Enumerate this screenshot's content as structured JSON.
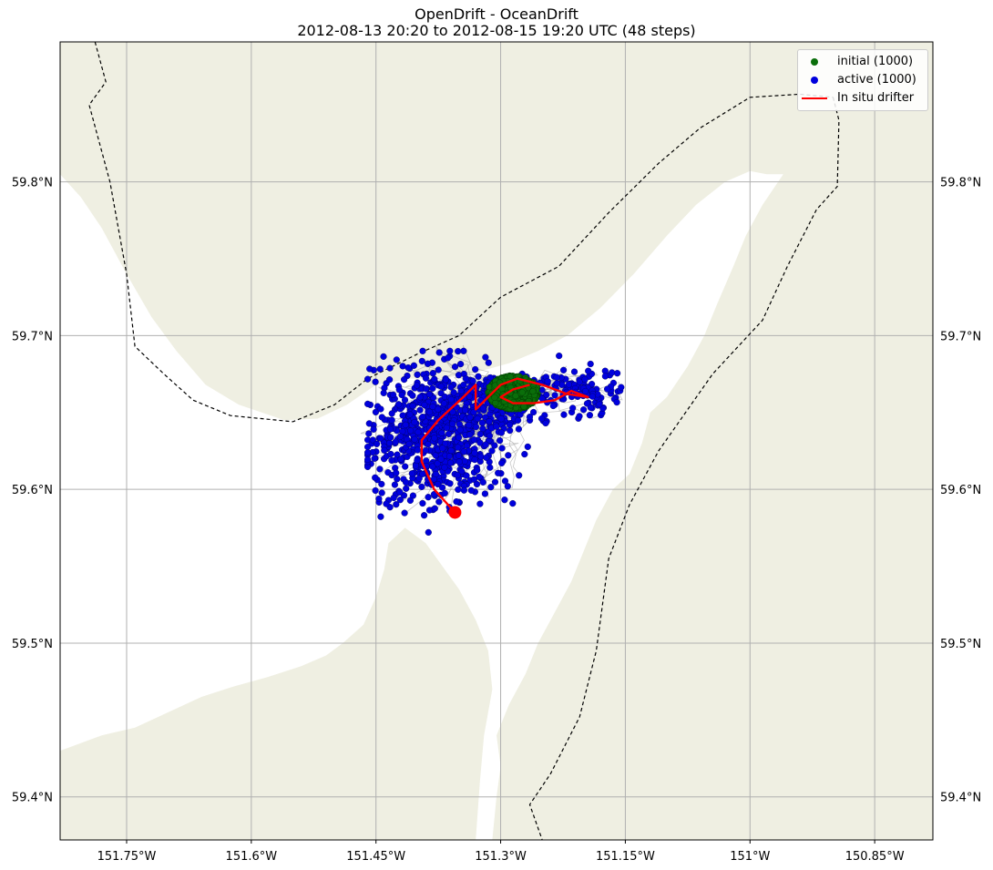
{
  "figure": {
    "title_line1": "OpenDrift - OceanDrift",
    "title_line2": "2012-08-13 20:20 to 2012-08-15 19:20 UTC (48 steps)"
  },
  "map": {
    "lon_range": [
      -151.83,
      -150.78
    ],
    "lat_range": [
      59.372,
      59.891
    ],
    "colors": {
      "land": "#efefe2",
      "ocean": "#ffffff",
      "gridline": "#b0b0b0",
      "trajectory": "#9b9b9b",
      "boundary": "#000000"
    },
    "x_ticks": [
      {
        "value": -151.75,
        "label": "151.75°W"
      },
      {
        "value": -151.6,
        "label": "151.6°W"
      },
      {
        "value": -151.45,
        "label": "151.45°W"
      },
      {
        "value": -151.3,
        "label": "151.3°W"
      },
      {
        "value": -151.15,
        "label": "151.15°W"
      },
      {
        "value": -151.0,
        "label": "151°W"
      },
      {
        "value": -150.85,
        "label": "150.85°W"
      }
    ],
    "y_ticks": [
      {
        "value": 59.8,
        "label": "59.8°N"
      },
      {
        "value": 59.7,
        "label": "59.7°N"
      },
      {
        "value": 59.6,
        "label": "59.6°N"
      },
      {
        "value": 59.5,
        "label": "59.5°N"
      },
      {
        "value": 59.4,
        "label": "59.4°N"
      }
    ],
    "north_shore": [
      [
        -151.83,
        59.891
      ],
      [
        -151.83,
        59.805
      ],
      [
        -151.805,
        59.79
      ],
      [
        -151.78,
        59.77
      ],
      [
        -151.75,
        59.74
      ],
      [
        -151.72,
        59.712
      ],
      [
        -151.69,
        59.69
      ],
      [
        -151.655,
        59.668
      ],
      [
        -151.615,
        59.655
      ],
      [
        -151.56,
        59.645
      ],
      [
        -151.52,
        59.646
      ],
      [
        -151.485,
        59.655
      ],
      [
        -151.45,
        59.668
      ],
      [
        -151.41,
        59.672
      ],
      [
        -151.37,
        59.672
      ],
      [
        -151.33,
        59.676
      ],
      [
        -151.29,
        59.682
      ],
      [
        -151.255,
        59.69
      ],
      [
        -151.22,
        59.7
      ],
      [
        -151.18,
        59.718
      ],
      [
        -151.14,
        59.74
      ],
      [
        -151.1,
        59.765
      ],
      [
        -151.065,
        59.785
      ],
      [
        -151.03,
        59.8
      ],
      [
        -151.0,
        59.807
      ],
      [
        -150.98,
        59.805
      ],
      [
        -150.96,
        59.805
      ],
      [
        -150.985,
        59.785
      ],
      [
        -151.005,
        59.765
      ],
      [
        -151.02,
        59.745
      ],
      [
        -151.04,
        59.72
      ],
      [
        -151.055,
        59.7
      ],
      [
        -151.075,
        59.68
      ],
      [
        -151.1,
        59.66
      ],
      [
        -151.12,
        59.65
      ],
      [
        -151.13,
        59.63
      ],
      [
        -151.145,
        59.61
      ],
      [
        -151.165,
        59.6
      ],
      [
        -151.185,
        59.58
      ],
      [
        -151.2,
        59.56
      ],
      [
        -151.215,
        59.54
      ],
      [
        -151.235,
        59.52
      ],
      [
        -151.255,
        59.5
      ],
      [
        -151.27,
        59.48
      ],
      [
        -151.29,
        59.46
      ],
      [
        -151.305,
        59.44
      ],
      [
        -151.3,
        59.42
      ],
      [
        -151.305,
        59.4
      ],
      [
        -151.31,
        59.372
      ],
      [
        -150.78,
        59.372
      ],
      [
        -150.78,
        59.891
      ]
    ],
    "south_shore": [
      [
        -151.83,
        59.372
      ],
      [
        -151.83,
        59.43
      ],
      [
        -151.78,
        59.44
      ],
      [
        -151.74,
        59.445
      ],
      [
        -151.7,
        59.455
      ],
      [
        -151.66,
        59.465
      ],
      [
        -151.62,
        59.472
      ],
      [
        -151.58,
        59.478
      ],
      [
        -151.54,
        59.485
      ],
      [
        -151.51,
        59.492
      ],
      [
        -151.49,
        59.5
      ],
      [
        -151.465,
        59.512
      ],
      [
        -151.45,
        59.53
      ],
      [
        -151.44,
        59.548
      ],
      [
        -151.435,
        59.565
      ],
      [
        -151.415,
        59.575
      ],
      [
        -151.39,
        59.565
      ],
      [
        -151.37,
        59.55
      ],
      [
        -151.35,
        59.535
      ],
      [
        -151.33,
        59.515
      ],
      [
        -151.315,
        59.495
      ],
      [
        -151.31,
        59.47
      ],
      [
        -151.32,
        59.44
      ],
      [
        -151.325,
        59.41
      ],
      [
        -151.33,
        59.372
      ]
    ],
    "boundary_west": [
      [
        -151.788,
        59.891
      ],
      [
        -151.775,
        59.865
      ],
      [
        -151.795,
        59.85
      ],
      [
        -151.77,
        59.8
      ],
      [
        -151.75,
        59.74
      ],
      [
        -151.74,
        59.693
      ],
      [
        -151.705,
        59.675
      ],
      [
        -151.67,
        59.658
      ],
      [
        -151.625,
        59.648
      ],
      [
        -151.55,
        59.644
      ],
      [
        -151.5,
        59.655
      ],
      [
        -151.46,
        59.672
      ],
      [
        -151.4,
        59.688
      ],
      [
        -151.35,
        59.7
      ],
      [
        -151.3,
        59.725
      ],
      [
        -151.23,
        59.745
      ],
      [
        -151.17,
        59.78
      ],
      [
        -151.11,
        59.812
      ],
      [
        -151.06,
        59.835
      ],
      [
        -151.0,
        59.855
      ],
      [
        -150.94,
        59.857
      ],
      [
        -150.9,
        59.855
      ]
    ],
    "boundary_east": [
      [
        -150.9,
        59.855
      ],
      [
        -150.893,
        59.84
      ],
      [
        -150.895,
        59.797
      ],
      [
        -150.92,
        59.782
      ],
      [
        -150.955,
        59.745
      ],
      [
        -150.985,
        59.71
      ],
      [
        -151.045,
        59.675
      ],
      [
        -151.11,
        59.625
      ],
      [
        -151.145,
        59.59
      ],
      [
        -151.17,
        59.555
      ],
      [
        -151.185,
        59.495
      ],
      [
        -151.205,
        59.452
      ],
      [
        -151.24,
        59.415
      ],
      [
        -151.265,
        59.395
      ],
      [
        -151.25,
        59.372
      ]
    ],
    "drifter_track": [
      [
        -151.355,
        59.585
      ],
      [
        -151.38,
        59.6
      ],
      [
        -151.395,
        59.618
      ],
      [
        -151.395,
        59.632
      ],
      [
        -151.375,
        59.645
      ],
      [
        -151.345,
        59.66
      ],
      [
        -151.33,
        59.668
      ],
      [
        -151.33,
        59.652
      ],
      [
        -151.315,
        59.66
      ],
      [
        -151.3,
        59.668
      ],
      [
        -151.28,
        59.672
      ],
      [
        -151.25,
        59.668
      ],
      [
        -151.22,
        59.662
      ],
      [
        -151.195,
        59.66
      ],
      [
        -151.215,
        59.664
      ],
      [
        -151.235,
        59.658
      ],
      [
        -151.26,
        59.656
      ],
      [
        -151.285,
        59.656
      ],
      [
        -151.3,
        59.66
      ],
      [
        -151.285,
        59.665
      ],
      [
        -151.265,
        59.668
      ]
    ],
    "drifter_end": [
      -151.355,
      59.585
    ],
    "particle_count": 1000
  },
  "legend": {
    "items": [
      {
        "label": "initial (1000)",
        "kind": "point",
        "color": "#0a6e0a"
      },
      {
        "label": "active (1000)",
        "kind": "point",
        "color": "#0000dd"
      },
      {
        "label": "In situ drifter",
        "kind": "line",
        "color": "#ff0000"
      }
    ]
  }
}
